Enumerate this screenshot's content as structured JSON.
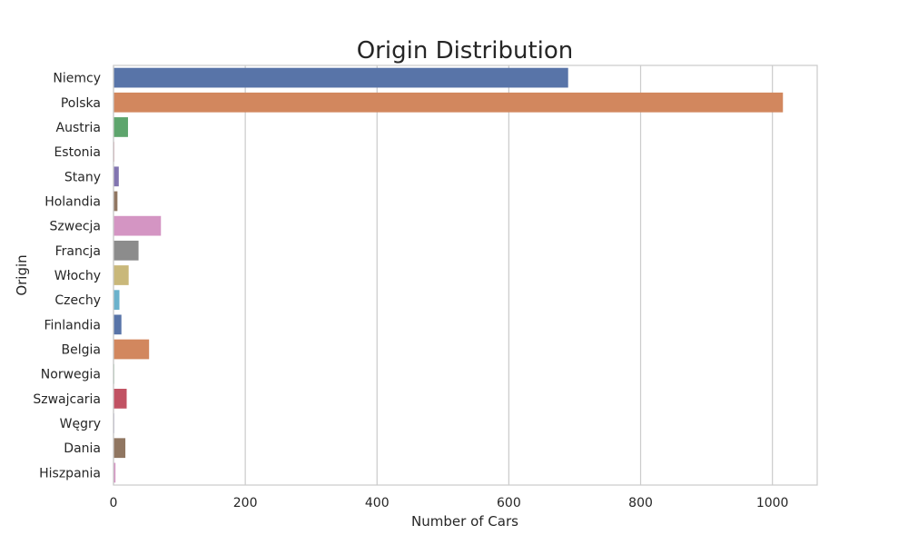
{
  "chart_data": {
    "type": "bar",
    "orientation": "horizontal",
    "title": "Origin Distribution",
    "xlabel": "Number of Cars",
    "ylabel": "Origin",
    "xlim": [
      0,
      1068
    ],
    "xticks": [
      0,
      200,
      400,
      600,
      800,
      1000
    ],
    "grid": "vertical",
    "categories": [
      "Niemcy",
      "Polska",
      "Austria",
      "Estonia",
      "Stany",
      "Holandia",
      "Szwecja",
      "Francja",
      "Włochy",
      "Czechy",
      "Finlandia",
      "Belgia",
      "Norwegia",
      "Szwajcaria",
      "Węgry",
      "Dania",
      "Hiszpania"
    ],
    "values": [
      690,
      1016,
      22,
      1,
      8,
      6,
      72,
      38,
      23,
      9,
      12,
      54,
      1,
      20,
      1,
      18,
      3
    ],
    "colors": [
      "#5874a8",
      "#d2875e",
      "#5ea56d",
      "#c15263",
      "#8275b0",
      "#907661",
      "#d495c3",
      "#8c8c8c",
      "#c9b87a",
      "#6bb2cc",
      "#5874a8",
      "#d2875e",
      "#5ea56d",
      "#c15263",
      "#8275b0",
      "#907661",
      "#d495c3"
    ]
  }
}
